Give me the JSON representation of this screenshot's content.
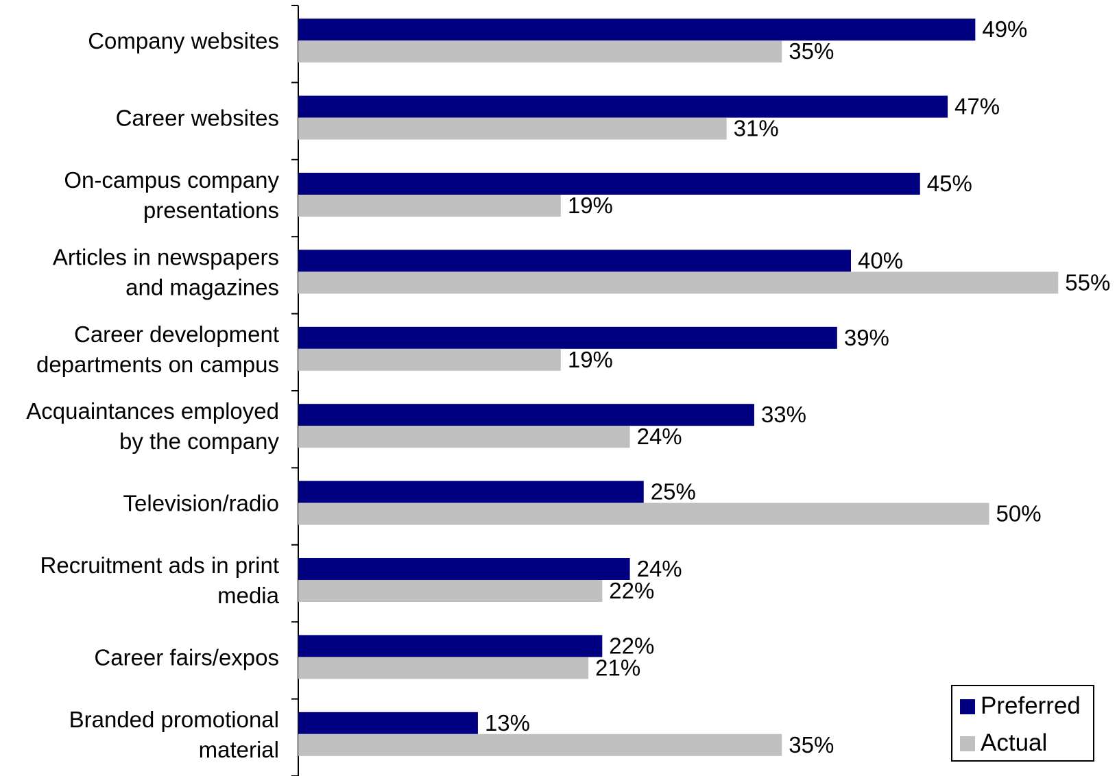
{
  "chart_data": {
    "type": "bar",
    "orientation": "horizontal",
    "categories": [
      [
        "Company websites"
      ],
      [
        "Career websites"
      ],
      [
        "On-campus company",
        "presentations"
      ],
      [
        "Articles in newspapers",
        "and magazines"
      ],
      [
        "Career development",
        "departments on campus"
      ],
      [
        "Acquaintances employed",
        "by the company"
      ],
      [
        "Television/radio"
      ],
      [
        "Recruitment ads in print",
        "media"
      ],
      [
        "Career fairs/expos"
      ],
      [
        "Branded promotional",
        "material"
      ]
    ],
    "series": [
      {
        "name": "Preferred",
        "color": "#000080",
        "values": [
          49,
          47,
          45,
          40,
          39,
          33,
          25,
          24,
          22,
          13
        ],
        "labels": [
          "49%",
          "47%",
          "45%",
          "40%",
          "39%",
          "33%",
          "25%",
          "24%",
          "22%",
          "13%"
        ]
      },
      {
        "name": "Actual",
        "color": "#c0c0c0",
        "values": [
          35,
          31,
          19,
          55,
          19,
          24,
          50,
          22,
          21,
          35
        ],
        "labels": [
          "35%",
          "31%",
          "19%",
          "55%",
          "19%",
          "24%",
          "50%",
          "22%",
          "21%",
          "35%"
        ]
      }
    ],
    "xlim": [
      0,
      55
    ],
    "grid": false,
    "legend_position": "bottom-right"
  }
}
